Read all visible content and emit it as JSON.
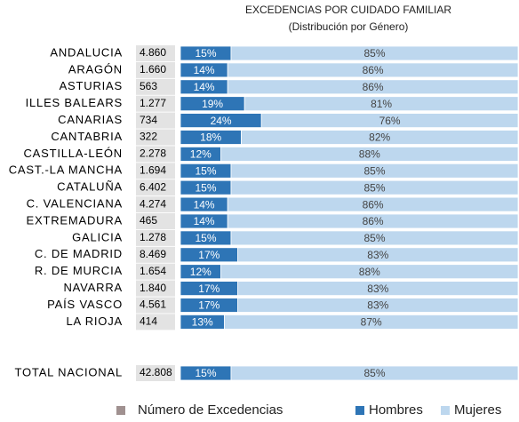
{
  "chart_data": {
    "type": "bar",
    "title": "EXCEDENCIAS POR CUIDADO FAMILIAR",
    "subtitle": "(Distribución por Género)",
    "stacked": true,
    "orientation": "horizontal",
    "xlim": [
      0,
      100
    ],
    "categories": [
      "ANDALUCIA",
      "ARAGÓN",
      "ASTURIAS",
      "ILLES BALEARS",
      "CANARIAS",
      "CANTABRIA",
      "CASTILLA-LEÓN",
      "CAST.-LA MANCHA",
      "CATALUÑA",
      "C. VALENCIANA",
      "EXTREMADURA",
      "GALICIA",
      "C. DE MADRID",
      "R. DE MURCIA",
      "NAVARRA",
      "PAÍS VASCO",
      "LA RIOJA",
      "TOTAL NACIONAL"
    ],
    "counts": {
      "name": "Número de Excedencias",
      "color": "#a09190",
      "values": [
        4860,
        1660,
        563,
        1277,
        734,
        322,
        2278,
        1694,
        6402,
        4274,
        465,
        1278,
        8469,
        1654,
        1840,
        4561,
        414,
        42808
      ],
      "value_labels": [
        "4.860",
        "1.660",
        "563",
        "1.277",
        "734",
        "322",
        "2.278",
        "1.694",
        "6.402",
        "4.274",
        "465",
        "1.278",
        "8.469",
        "1.654",
        "1.840",
        "4.561",
        "414",
        "42.808"
      ]
    },
    "series": [
      {
        "name": "Hombres",
        "color": "#2e75b6",
        "values": [
          15,
          14,
          14,
          19,
          24,
          18,
          12,
          15,
          15,
          14,
          14,
          15,
          17,
          12,
          17,
          17,
          13,
          15
        ],
        "value_labels": [
          "15%",
          "14%",
          "14%",
          "19%",
          "24%",
          "18%",
          "12%",
          "15%",
          "15%",
          "14%",
          "14%",
          "15%",
          "17%",
          "12%",
          "17%",
          "17%",
          "13%",
          "15%"
        ]
      },
      {
        "name": "Mujeres",
        "color": "#bdd7ee",
        "values": [
          85,
          86,
          86,
          81,
          76,
          82,
          88,
          85,
          85,
          86,
          86,
          85,
          83,
          88,
          83,
          83,
          87,
          85
        ],
        "value_labels": [
          "85%",
          "86%",
          "86%",
          "81%",
          "76%",
          "82%",
          "88%",
          "85%",
          "85%",
          "86%",
          "86%",
          "85%",
          "83%",
          "88%",
          "83%",
          "83%",
          "87%",
          "85%"
        ]
      }
    ]
  }
}
